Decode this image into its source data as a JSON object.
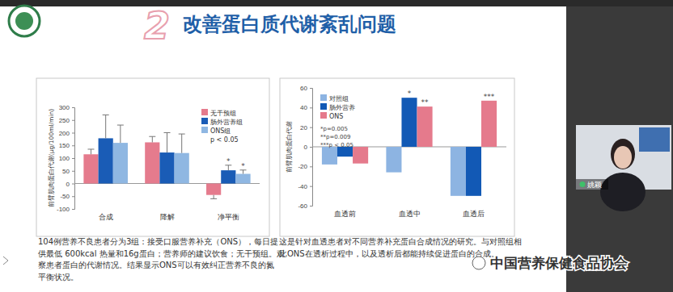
{
  "slide": {
    "number": "2",
    "title": "改善蛋白质代谢紊乱问题",
    "captions": [
      [
        "104例营养不良患者分为3组：接受口服营养补充（ONS），每日提",
        "供最低 600kcal 热量和16g蛋白；营养师的建议饮食；无干预组。观",
        "察患者蛋白的代谢情况。结果显示ONS可以有效纠正营养不良的氮",
        "平衡状况。"
      ],
      [
        "这是针对血透患者对不同营养补充蛋白合成情况的研究。与对照组相",
        "比ONS在透析过程中，以及透析后都能持续促进蛋白的合成。"
      ]
    ]
  },
  "presenter": "姚颖",
  "watermark": "中国营养保健食品协会",
  "chart_data": [
    {
      "type": "bar",
      "y_label": "前臂肌肉蛋白代谢(μg/100ml/min)",
      "categories": [
        "合成",
        "降解",
        "净平衡"
      ],
      "series": [
        {
          "name": "无干预组",
          "color": "#e57b8d",
          "values": [
            115,
            162,
            -45
          ],
          "errors": [
            20,
            23,
            15
          ]
        },
        {
          "name": "肠外营养组",
          "color": "#1a5cb6",
          "values": [
            178,
            122,
            52
          ],
          "errors": [
            92,
            78,
            20
          ]
        },
        {
          "name": "ONS组",
          "color": "#8fb7e2",
          "values": [
            160,
            120,
            38
          ],
          "errors": [
            70,
            75,
            15
          ]
        }
      ],
      "legend_note": "p < 0.05",
      "annotations": [
        {
          "text": "*",
          "category": "净平衡",
          "series": "肠外营养组"
        },
        {
          "text": "*",
          "category": "净平衡",
          "series": "ONS组"
        }
      ],
      "ylim": [
        -100,
        300
      ],
      "yticks": [
        -100,
        -50,
        0,
        50,
        100,
        150,
        200,
        250,
        300
      ],
      "grid": false,
      "legend": "upper right"
    },
    {
      "type": "bar",
      "y_label": "前臂肌肉蛋白代谢",
      "categories": [
        "血透前",
        "血透中",
        "血透后"
      ],
      "series": [
        {
          "name": "对照组",
          "color": "#8db4e2",
          "values": [
            -18,
            -26,
            -50
          ]
        },
        {
          "name": "肠外营养",
          "color": "#1259b5",
          "values": [
            -10,
            50,
            -50
          ]
        },
        {
          "name": "ONS",
          "color": "#e57a8c",
          "values": [
            -17,
            41,
            47
          ]
        }
      ],
      "notes": [
        "*p=0.005",
        "**p=0.009",
        "***p < 0.05"
      ],
      "annotations": [
        {
          "text": "*",
          "category": "血透中",
          "series": "肠外营养"
        },
        {
          "text": "**",
          "category": "血透中",
          "series": "ONS"
        },
        {
          "text": "***",
          "category": "血透后",
          "series": "ONS"
        }
      ],
      "ylim": [
        -60,
        60
      ],
      "yticks": [
        -60,
        -40,
        -20,
        0,
        20,
        40,
        60
      ],
      "grid": false,
      "legend": "upper left"
    }
  ]
}
